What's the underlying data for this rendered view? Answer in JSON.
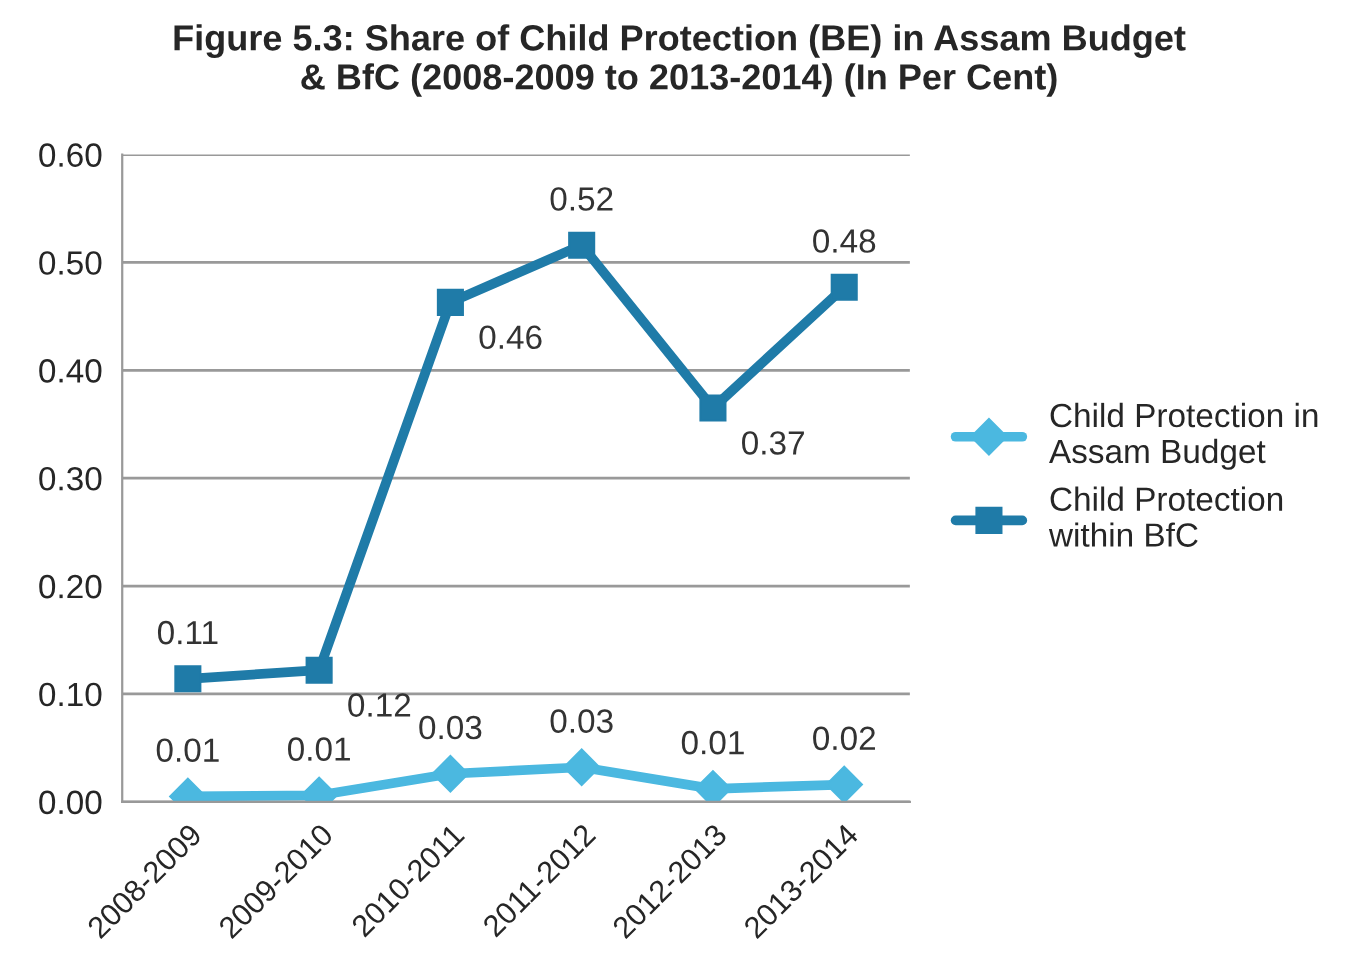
{
  "chart_data": {
    "type": "line",
    "title": "Figure 5.3: Share of Child Protection (BE) in Assam Budget\n& BfC (2008-2009 to 2013-2014) (In Per Cent)",
    "categories": [
      "2008-2009",
      "2009-2010",
      "2010-2011",
      "2011-2012",
      "2012-2013",
      "2013-2014"
    ],
    "series": [
      {
        "name": "Child Protection in\nAssam Budget",
        "color": "#4bb8e0",
        "marker": "diamond",
        "values": [
          0.005,
          0.006,
          0.026,
          0.032,
          0.012,
          0.016
        ],
        "value_labels": [
          "0.01",
          "0.01",
          "0.03",
          "0.03",
          "0.01",
          "0.02"
        ]
      },
      {
        "name": "Child Protection\nwithin BfC",
        "color": "#1f7ba8",
        "marker": "square",
        "values": [
          0.114,
          0.122,
          0.463,
          0.516,
          0.365,
          0.477
        ],
        "value_labels": [
          "0.11",
          "0.12",
          "0.46",
          "0.52",
          "0.37",
          "0.48"
        ]
      }
    ],
    "ylim": [
      0,
      0.6
    ],
    "yticks": [
      {
        "value": 0,
        "label": "0.00"
      },
      {
        "value": 0.1,
        "label": "0.10"
      },
      {
        "value": 0.2,
        "label": "0.20"
      },
      {
        "value": 0.3,
        "label": "0.30"
      },
      {
        "value": 0.4,
        "label": "0.40"
      },
      {
        "value": 0.5,
        "label": "0.50"
      },
      {
        "value": 0.6,
        "label": "0.60"
      }
    ],
    "grid": "y",
    "legend": "right",
    "line_style": "solid"
  }
}
